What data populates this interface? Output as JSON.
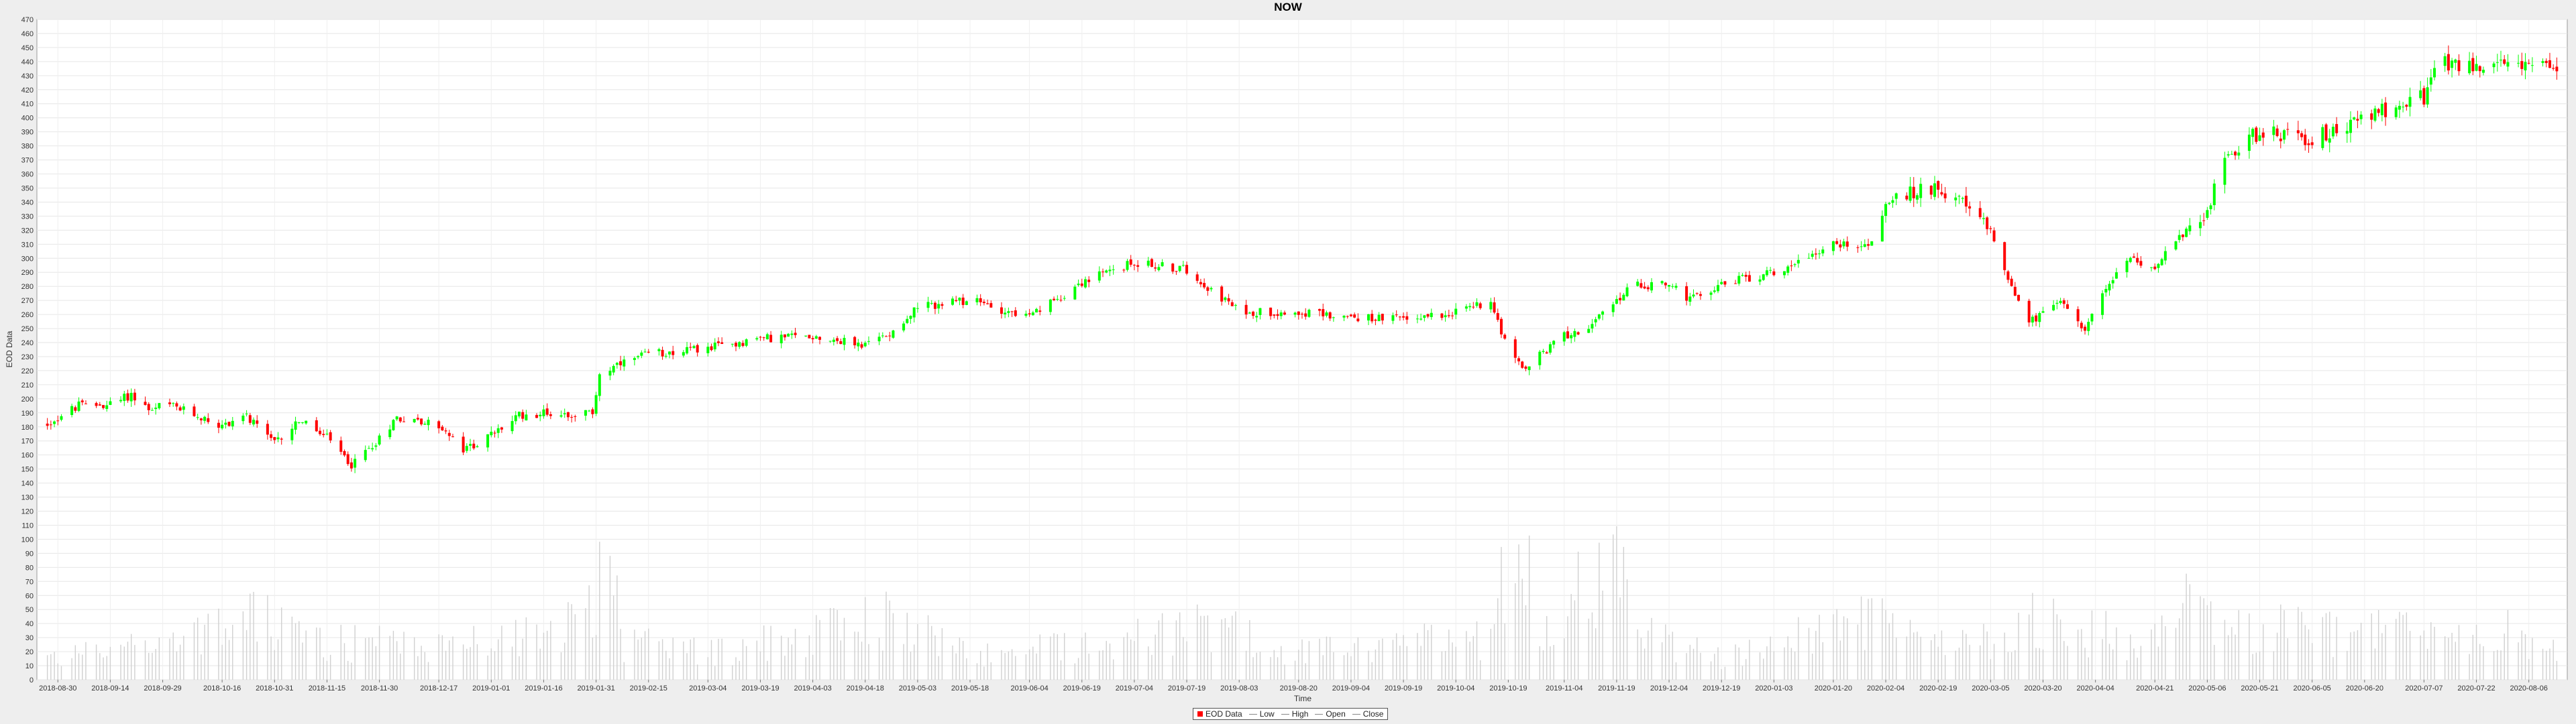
{
  "chart_data": {
    "type": "candlestick",
    "title": "NOW",
    "xlabel": "Time",
    "ylabel": "EOD Data",
    "ylim": [
      0,
      470
    ],
    "y_ticks": [
      0,
      10,
      20,
      30,
      40,
      50,
      60,
      70,
      80,
      90,
      100,
      110,
      120,
      130,
      140,
      150,
      160,
      170,
      180,
      190,
      200,
      210,
      220,
      230,
      240,
      250,
      260,
      270,
      280,
      290,
      300,
      310,
      320,
      330,
      340,
      350,
      360,
      370,
      380,
      390,
      400,
      410,
      420,
      430,
      440,
      450,
      460,
      470
    ],
    "x_ticks": [
      "2018-08-30",
      "2018-09-14",
      "2018-09-29",
      "2018-10-16",
      "2018-10-31",
      "2018-11-15",
      "2018-11-30",
      "2018-12-17",
      "2019-01-01",
      "2019-01-16",
      "2019-01-31",
      "2019-02-15",
      "2019-03-04",
      "2019-03-19",
      "2019-04-03",
      "2019-04-18",
      "2019-05-03",
      "2019-05-18",
      "2019-06-04",
      "2019-06-19",
      "2019-07-04",
      "2019-07-19",
      "2019-08-03",
      "2019-08-20",
      "2019-09-04",
      "2019-09-19",
      "2019-10-04",
      "2019-10-19",
      "2019-11-04",
      "2019-11-19",
      "2019-12-04",
      "2019-12-19",
      "2020-01-03",
      "2020-01-20",
      "2020-02-04",
      "2020-02-19",
      "2020-03-05",
      "2020-03-20",
      "2020-04-04",
      "2020-04-21",
      "2020-05-06",
      "2020-05-21",
      "2020-06-05",
      "2020-06-20",
      "2020-07-07",
      "2020-07-22",
      "2020-08-06"
    ],
    "close_anchors": [
      [
        "2018-08-27",
        182
      ],
      [
        "2018-09-05",
        195
      ],
      [
        "2018-09-14",
        196
      ],
      [
        "2018-09-20",
        203
      ],
      [
        "2018-09-26",
        190
      ],
      [
        "2018-09-29",
        197
      ],
      [
        "2018-10-10",
        187
      ],
      [
        "2018-10-16",
        180
      ],
      [
        "2018-10-22",
        189
      ],
      [
        "2018-10-31",
        168
      ],
      [
        "2018-11-07",
        185
      ],
      [
        "2018-11-15",
        172
      ],
      [
        "2018-11-22",
        153
      ],
      [
        "2018-11-30",
        172
      ],
      [
        "2018-12-05",
        187
      ],
      [
        "2018-12-17",
        181
      ],
      [
        "2018-12-24",
        163
      ],
      [
        "2019-01-01",
        174
      ],
      [
        "2019-01-09",
        188
      ],
      [
        "2019-01-16",
        190
      ],
      [
        "2019-01-24",
        189
      ],
      [
        "2019-01-30",
        190
      ],
      [
        "2019-02-01",
        218
      ],
      [
        "2019-02-15",
        232
      ],
      [
        "2019-03-04",
        236
      ],
      [
        "2019-03-19",
        243
      ],
      [
        "2019-04-03",
        245
      ],
      [
        "2019-04-18",
        238
      ],
      [
        "2019-04-25",
        247
      ],
      [
        "2019-05-03",
        265
      ],
      [
        "2019-05-18",
        270
      ],
      [
        "2019-06-04",
        258
      ],
      [
        "2019-06-19",
        283
      ],
      [
        "2019-07-04",
        297
      ],
      [
        "2019-07-19",
        292
      ],
      [
        "2019-07-26",
        278
      ],
      [
        "2019-08-03",
        262
      ],
      [
        "2019-08-20",
        262
      ],
      [
        "2019-09-04",
        258
      ],
      [
        "2019-09-19",
        257
      ],
      [
        "2019-10-04",
        262
      ],
      [
        "2019-10-14",
        270
      ],
      [
        "2019-10-19",
        235
      ],
      [
        "2019-10-23",
        220
      ],
      [
        "2019-11-04",
        245
      ],
      [
        "2019-11-12",
        252
      ],
      [
        "2019-11-19",
        270
      ],
      [
        "2019-11-23",
        280
      ],
      [
        "2019-12-04",
        282
      ],
      [
        "2019-12-10",
        270
      ],
      [
        "2019-12-19",
        282
      ],
      [
        "2020-01-03",
        290
      ],
      [
        "2020-01-20",
        310
      ],
      [
        "2020-01-31",
        310
      ],
      [
        "2020-02-04",
        340
      ],
      [
        "2020-02-19",
        352
      ],
      [
        "2020-02-25",
        340
      ],
      [
        "2020-03-05",
        320
      ],
      [
        "2020-03-11",
        280
      ],
      [
        "2020-03-16",
        255
      ],
      [
        "2020-03-20",
        260
      ],
      [
        "2020-03-26",
        270
      ],
      [
        "2020-04-01",
        250
      ],
      [
        "2020-04-04",
        265
      ],
      [
        "2020-04-13",
        300
      ],
      [
        "2020-04-21",
        295
      ],
      [
        "2020-05-06",
        335
      ],
      [
        "2020-05-12",
        375
      ],
      [
        "2020-05-21",
        390
      ],
      [
        "2020-06-05",
        385
      ],
      [
        "2020-06-20",
        400
      ],
      [
        "2020-07-07",
        415
      ],
      [
        "2020-07-12",
        440
      ],
      [
        "2020-07-22",
        435
      ],
      [
        "2020-08-06",
        440
      ],
      [
        "2020-08-14",
        430
      ]
    ],
    "vol_anchors": [
      [
        "2018-08-27",
        20
      ],
      [
        "2018-09-14",
        30
      ],
      [
        "2018-10-16",
        45
      ],
      [
        "2018-10-22",
        60
      ],
      [
        "2018-11-15",
        35
      ],
      [
        "2018-12-24",
        32
      ],
      [
        "2019-01-31",
        60
      ],
      [
        "2019-02-01",
        140
      ],
      [
        "2019-02-08",
        35
      ],
      [
        "2019-03-04",
        25
      ],
      [
        "2019-04-25",
        58
      ],
      [
        "2019-05-18",
        22
      ],
      [
        "2019-07-19",
        45
      ],
      [
        "2019-07-26",
        55
      ],
      [
        "2019-08-20",
        25
      ],
      [
        "2019-10-14",
        40
      ],
      [
        "2019-10-22",
        155
      ],
      [
        "2019-10-28",
        40
      ],
      [
        "2019-11-19",
        125
      ],
      [
        "2019-11-23",
        45
      ],
      [
        "2019-12-19",
        20
      ],
      [
        "2020-01-31",
        60
      ],
      [
        "2020-02-19",
        30
      ],
      [
        "2020-03-11",
        45
      ],
      [
        "2020-03-16",
        55
      ],
      [
        "2020-04-21",
        35
      ],
      [
        "2020-04-30",
        68
      ],
      [
        "2020-05-06",
        50
      ],
      [
        "2020-07-22",
        40
      ],
      [
        "2020-07-28",
        50
      ],
      [
        "2020-08-14",
        25
      ]
    ],
    "series": [
      {
        "name": "EOD Data",
        "color": "#ff0000"
      },
      {
        "name": "Low",
        "color": "#aaaaaa"
      },
      {
        "name": "High",
        "color": "#aaaaaa"
      },
      {
        "name": "Open",
        "color": "#aaaaaa"
      },
      {
        "name": "Close",
        "color": "#aaaaaa"
      }
    ],
    "up_color": "#00ff00",
    "down_color": "#ff0000",
    "volume_color": "#d0d0d0",
    "grid": true,
    "legend_position": "bottom-center"
  }
}
